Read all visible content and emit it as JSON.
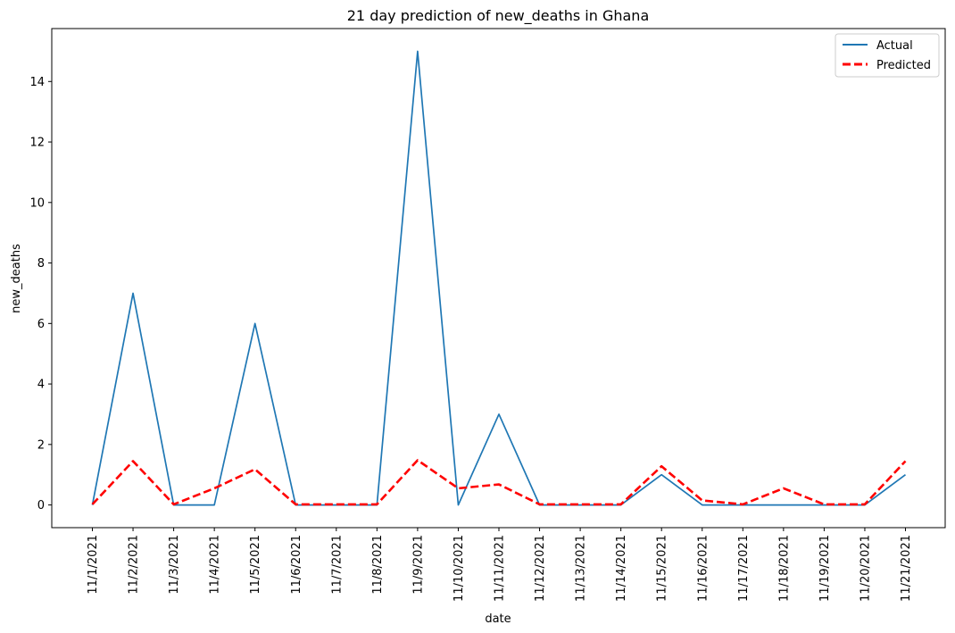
{
  "chart_data": {
    "type": "line",
    "title": "21 day prediction of new_deaths in Ghana",
    "xlabel": "date",
    "ylabel": "new_deaths",
    "categories": [
      "11/1/2021",
      "11/2/2021",
      "11/3/2021",
      "11/4/2021",
      "11/5/2021",
      "11/6/2021",
      "11/7/2021",
      "11/8/2021",
      "11/9/2021",
      "11/10/2021",
      "11/11/2021",
      "11/12/2021",
      "11/13/2021",
      "11/14/2021",
      "11/15/2021",
      "11/16/2021",
      "11/17/2021",
      "11/18/2021",
      "11/19/2021",
      "11/20/2021",
      "11/21/2021"
    ],
    "yticks": [
      0,
      2,
      4,
      6,
      8,
      10,
      12,
      14
    ],
    "ylim": [
      -0.75,
      15.75
    ],
    "grid": false,
    "legend_position": "top-right",
    "series": [
      {
        "name": "Actual",
        "color": "#1f77b4",
        "style": "solid",
        "values": [
          0,
          7,
          0,
          0,
          6,
          0,
          0,
          0,
          15,
          0,
          3,
          0,
          0,
          0,
          1,
          0,
          0,
          0,
          0,
          0,
          1
        ]
      },
      {
        "name": "Predicted",
        "color": "#ff0000",
        "style": "dashed",
        "values": [
          0.02,
          1.45,
          0.02,
          0.55,
          1.18,
          0.02,
          0.02,
          0.02,
          1.48,
          0.55,
          0.68,
          0.02,
          0.02,
          0.02,
          1.28,
          0.15,
          0.02,
          0.55,
          0.02,
          0.02,
          1.45
        ]
      }
    ]
  }
}
